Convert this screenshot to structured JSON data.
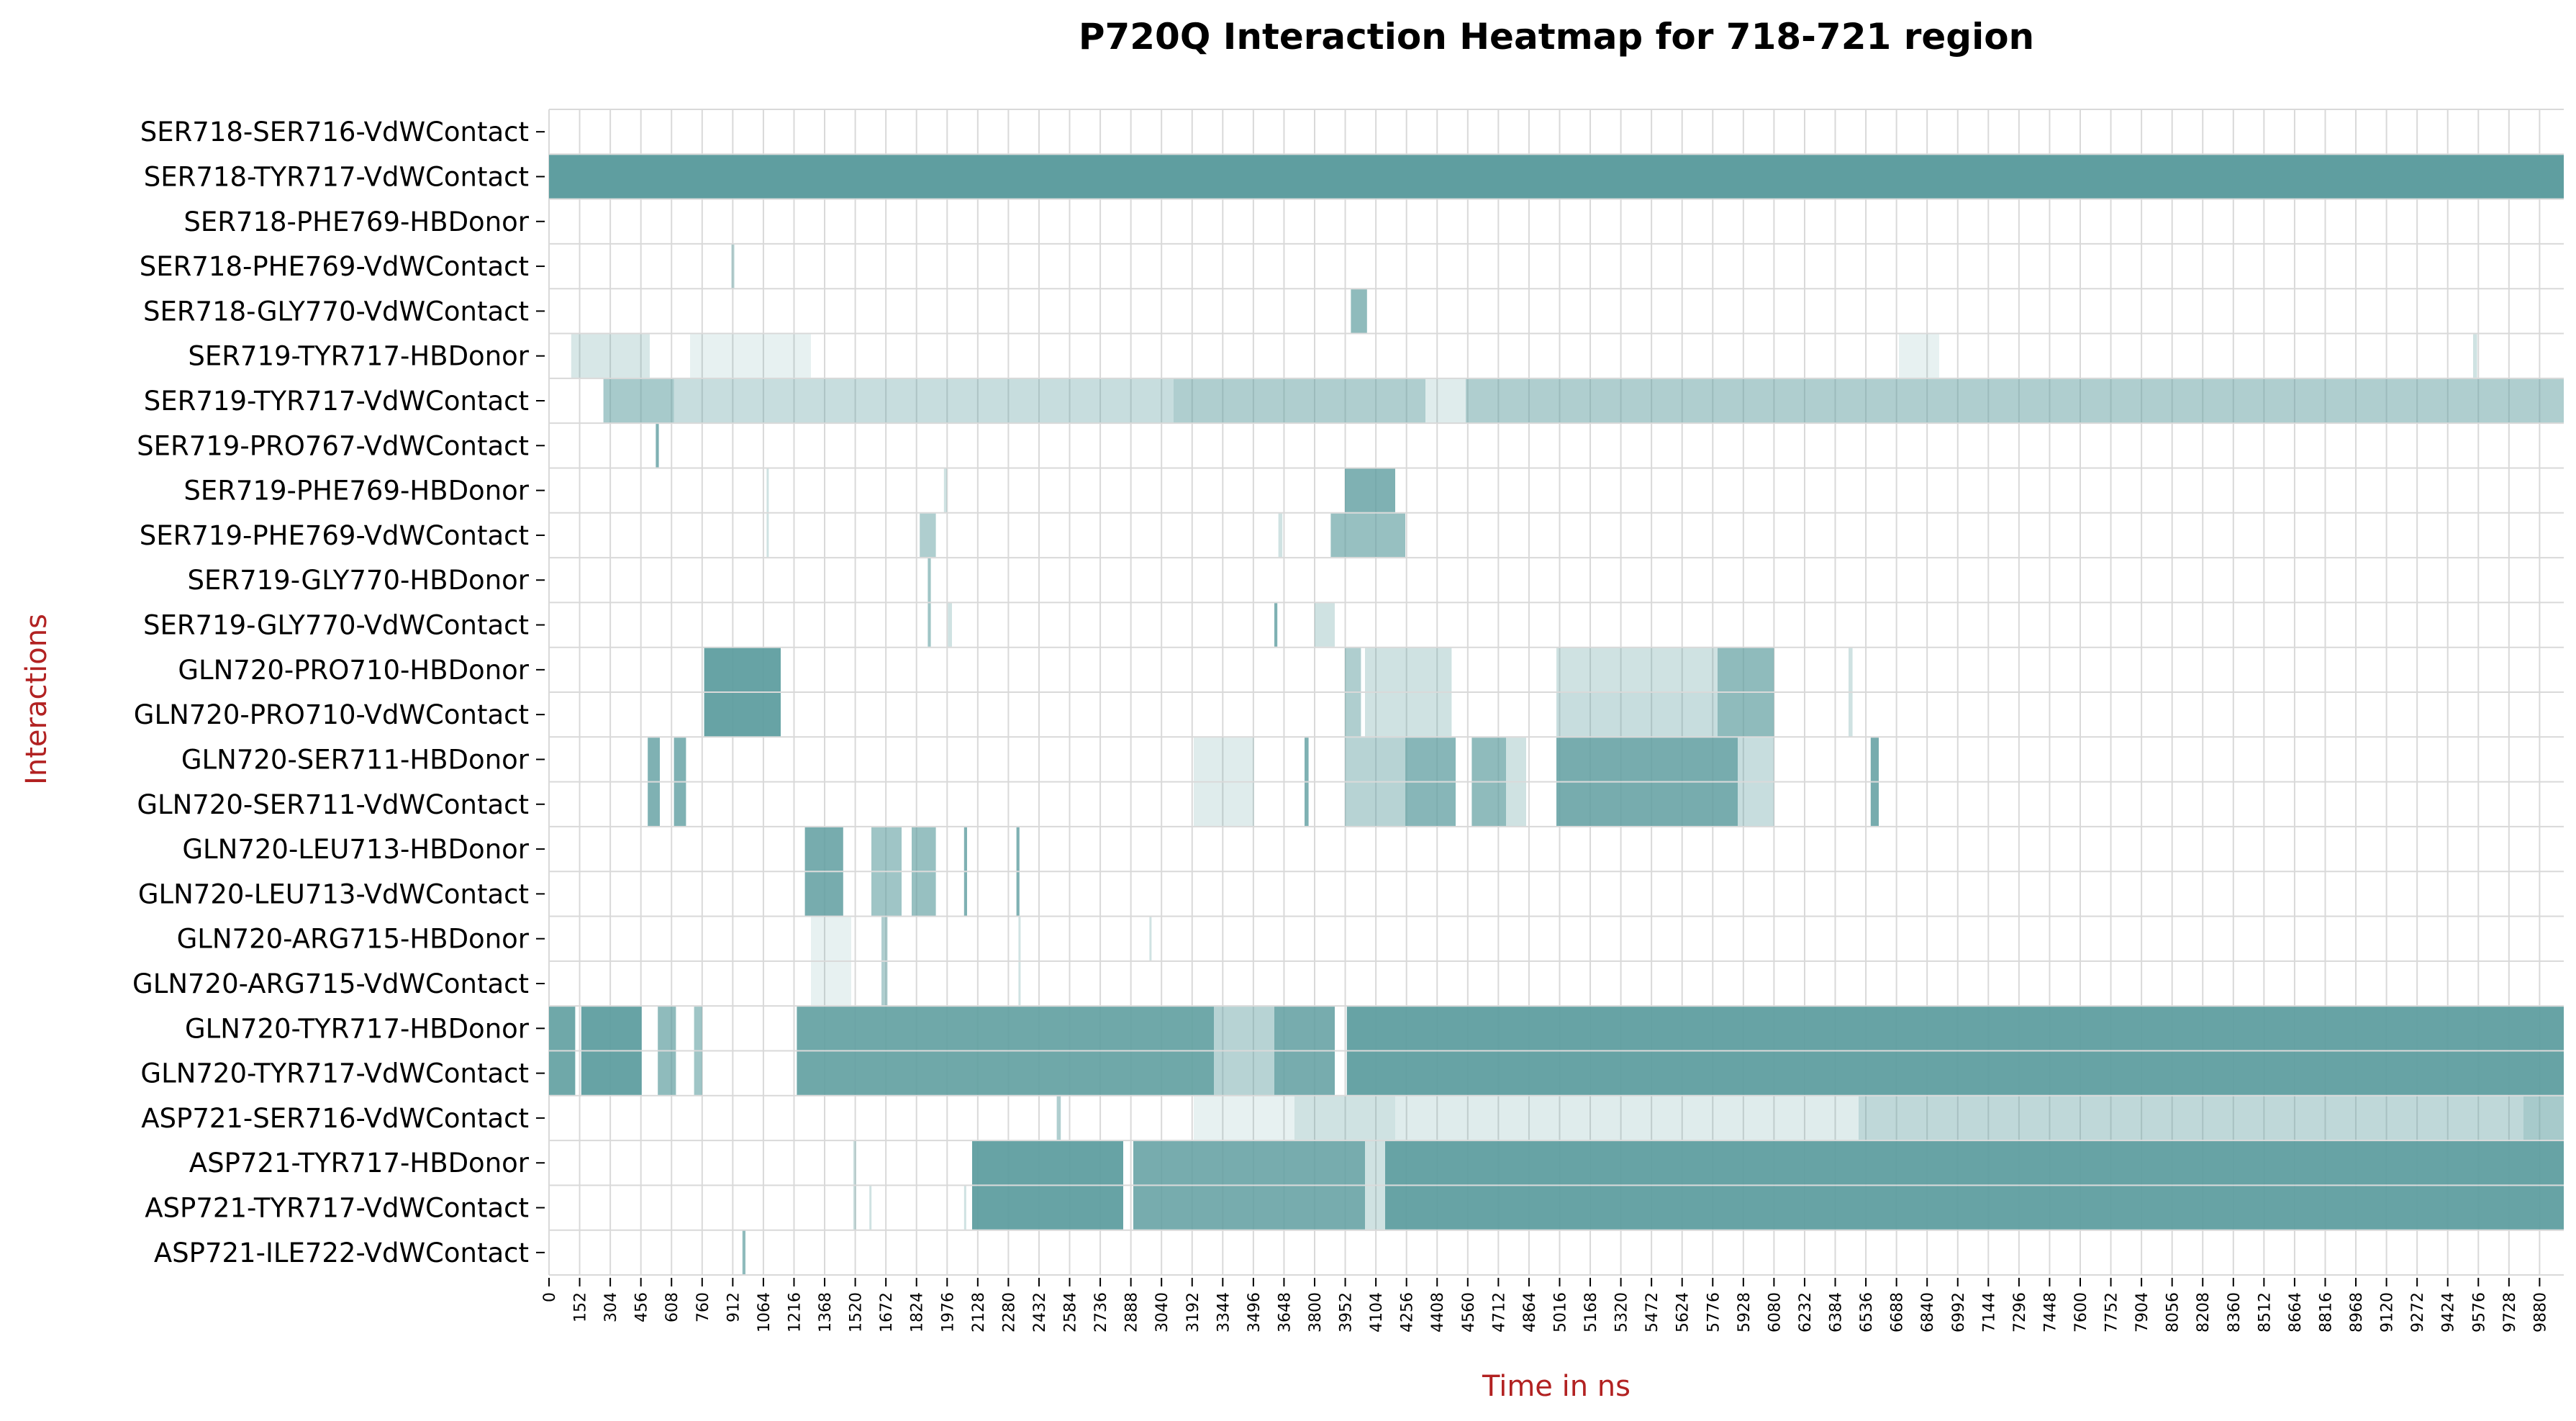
{
  "chart_data": {
    "type": "heatmap",
    "title": "P720Q Interaction Heatmap for 718-721 region",
    "xlabel": "Time in ns",
    "ylabel": "Interactions",
    "xlim": [
      0,
      10000
    ],
    "x_tick_step": 152,
    "x_ticks": [
      "0",
      "152",
      "304",
      "456",
      "608",
      "760",
      "912",
      "1064",
      "1216",
      "1368",
      "1520",
      "1672",
      "1824",
      "1976",
      "2128",
      "2280",
      "2432",
      "2584",
      "2736",
      "2888",
      "3040",
      "3192",
      "3344",
      "3496",
      "3648",
      "3800",
      "3952",
      "4104",
      "4256",
      "4408",
      "4560",
      "4712",
      "4864",
      "5016",
      "5168",
      "5320",
      "5472",
      "5624",
      "5776",
      "5928",
      "6080",
      "6232",
      "6384",
      "6536",
      "6688",
      "6840",
      "6992",
      "7144",
      "7296",
      "7448",
      "7600",
      "7752",
      "7904",
      "8056",
      "8208",
      "8360",
      "8512",
      "8664",
      "8816",
      "8968",
      "9120",
      "9272",
      "9424",
      "9576",
      "9728",
      "9880"
    ],
    "colors": {
      "present": "#5f9ea0",
      "absent": "#ffffff",
      "grid": "#d9d9d9"
    },
    "rows": [
      {
        "label": "SER718-SER716-VdWContact",
        "segments": []
      },
      {
        "label": "SER718-TYR717-VdWContact",
        "segments": [
          [
            0,
            10000,
            1.0
          ]
        ]
      },
      {
        "label": "SER718-PHE769-HBDonor",
        "segments": []
      },
      {
        "label": "SER718-PHE769-VdWContact",
        "segments": [
          [
            905,
            920,
            0.4
          ]
        ]
      },
      {
        "label": "SER718-GLY770-VdWContact",
        "segments": [
          [
            3980,
            4060,
            0.7
          ]
        ]
      },
      {
        "label": "SER719-TYR717-HBDonor",
        "segments": [
          [
            110,
            500,
            0.25
          ],
          [
            700,
            1300,
            0.15
          ],
          [
            6700,
            6900,
            0.15
          ],
          [
            9550,
            9570,
            0.3
          ]
        ]
      },
      {
        "label": "SER719-TYR717-VdWContact",
        "segments": [
          [
            270,
            620,
            0.55
          ],
          [
            620,
            3100,
            0.35
          ],
          [
            3100,
            4350,
            0.5
          ],
          [
            4350,
            4550,
            0.2
          ],
          [
            4550,
            10000,
            0.5
          ]
        ]
      },
      {
        "label": "SER719-PRO767-VdWContact",
        "segments": [
          [
            530,
            545,
            0.8
          ]
        ]
      },
      {
        "label": "SER719-PHE769-HBDonor",
        "segments": [
          [
            1080,
            1090,
            0.3
          ],
          [
            1960,
            1975,
            0.3
          ],
          [
            3950,
            4200,
            0.8
          ]
        ]
      },
      {
        "label": "SER719-PHE769-VdWContact",
        "segments": [
          [
            1080,
            1090,
            0.3
          ],
          [
            1840,
            1920,
            0.5
          ],
          [
            3620,
            3640,
            0.3
          ],
          [
            3880,
            4250,
            0.65
          ]
        ]
      },
      {
        "label": "SER719-GLY770-HBDonor",
        "segments": [
          [
            1880,
            1895,
            0.6
          ]
        ]
      },
      {
        "label": "SER719-GLY770-VdWContact",
        "segments": [
          [
            1880,
            1895,
            0.6
          ],
          [
            1980,
            2000,
            0.3
          ],
          [
            3600,
            3615,
            0.8
          ],
          [
            3800,
            3900,
            0.3
          ]
        ]
      },
      {
        "label": "GLN720-PRO710-HBDonor",
        "segments": [
          [
            770,
            1150,
            0.95
          ],
          [
            3950,
            4030,
            0.5
          ],
          [
            4050,
            4480,
            0.3
          ],
          [
            5000,
            5800,
            0.3
          ],
          [
            5800,
            6080,
            0.7
          ],
          [
            6450,
            6470,
            0.3
          ]
        ]
      },
      {
        "label": "GLN720-PRO710-VdWContact",
        "segments": [
          [
            770,
            1150,
            0.95
          ],
          [
            3950,
            4030,
            0.5
          ],
          [
            4050,
            4480,
            0.3
          ],
          [
            5000,
            5800,
            0.35
          ],
          [
            5800,
            6080,
            0.7
          ],
          [
            6450,
            6470,
            0.3
          ]
        ]
      },
      {
        "label": "GLN720-SER711-HBDonor",
        "segments": [
          [
            490,
            550,
            0.8
          ],
          [
            620,
            680,
            0.8
          ],
          [
            3200,
            3500,
            0.2
          ],
          [
            3750,
            3770,
            0.8
          ],
          [
            3950,
            4250,
            0.45
          ],
          [
            4250,
            4500,
            0.75
          ],
          [
            4580,
            4750,
            0.7
          ],
          [
            4750,
            4850,
            0.3
          ],
          [
            5000,
            5900,
            0.85
          ],
          [
            5900,
            6080,
            0.35
          ],
          [
            6560,
            6600,
            0.85
          ]
        ]
      },
      {
        "label": "GLN720-SER711-VdWContact",
        "segments": [
          [
            490,
            550,
            0.8
          ],
          [
            620,
            680,
            0.8
          ],
          [
            3200,
            3500,
            0.2
          ],
          [
            3750,
            3770,
            0.8
          ],
          [
            3950,
            4250,
            0.45
          ],
          [
            4250,
            4500,
            0.75
          ],
          [
            4580,
            4750,
            0.7
          ],
          [
            4750,
            4850,
            0.3
          ],
          [
            5000,
            5900,
            0.85
          ],
          [
            5900,
            6080,
            0.35
          ],
          [
            6560,
            6600,
            0.85
          ]
        ]
      },
      {
        "label": "GLN720-LEU713-HBDonor",
        "segments": [
          [
            1270,
            1460,
            0.85
          ],
          [
            1600,
            1750,
            0.6
          ],
          [
            1800,
            1920,
            0.65
          ],
          [
            2060,
            2075,
            0.8
          ],
          [
            2320,
            2335,
            0.8
          ]
        ]
      },
      {
        "label": "GLN720-LEU713-VdWContact",
        "segments": [
          [
            1270,
            1460,
            0.85
          ],
          [
            1600,
            1750,
            0.6
          ],
          [
            1800,
            1920,
            0.65
          ],
          [
            2060,
            2075,
            0.8
          ],
          [
            2320,
            2335,
            0.8
          ]
        ]
      },
      {
        "label": "GLN720-ARG715-HBDonor",
        "segments": [
          [
            1300,
            1500,
            0.15
          ],
          [
            1650,
            1680,
            0.5
          ],
          [
            2330,
            2340,
            0.3
          ],
          [
            2980,
            2990,
            0.3
          ]
        ]
      },
      {
        "label": "GLN720-ARG715-VdWContact",
        "segments": [
          [
            1300,
            1500,
            0.15
          ],
          [
            1650,
            1680,
            0.5
          ],
          [
            2330,
            2340,
            0.3
          ]
        ]
      },
      {
        "label": "GLN720-TYR717-HBDonor",
        "segments": [
          [
            0,
            130,
            0.9
          ],
          [
            160,
            460,
            0.95
          ],
          [
            540,
            630,
            0.7
          ],
          [
            720,
            760,
            0.6
          ],
          [
            1230,
            3300,
            0.9
          ],
          [
            3300,
            3600,
            0.45
          ],
          [
            3600,
            3900,
            0.85
          ],
          [
            3960,
            10000,
            0.95
          ]
        ]
      },
      {
        "label": "GLN720-TYR717-VdWContact",
        "segments": [
          [
            0,
            130,
            0.9
          ],
          [
            160,
            460,
            0.95
          ],
          [
            540,
            630,
            0.7
          ],
          [
            720,
            760,
            0.6
          ],
          [
            1230,
            3300,
            0.9
          ],
          [
            3300,
            3600,
            0.45
          ],
          [
            3600,
            3900,
            0.85
          ],
          [
            3960,
            10000,
            0.95
          ]
        ]
      },
      {
        "label": "ASP721-SER716-VdWContact",
        "segments": [
          [
            2520,
            2540,
            0.5
          ],
          [
            3200,
            3700,
            0.15
          ],
          [
            3700,
            4200,
            0.3
          ],
          [
            4200,
            6500,
            0.2
          ],
          [
            6500,
            9800,
            0.4
          ],
          [
            9800,
            10000,
            0.55
          ]
        ]
      },
      {
        "label": "ASP721-TYR717-HBDonor",
        "segments": [
          [
            1510,
            1525,
            0.3
          ],
          [
            2100,
            2850,
            0.95
          ],
          [
            2900,
            4050,
            0.85
          ],
          [
            4050,
            4150,
            0.3
          ],
          [
            4150,
            10000,
            0.95
          ]
        ]
      },
      {
        "label": "ASP721-TYR717-VdWContact",
        "segments": [
          [
            1510,
            1525,
            0.3
          ],
          [
            1590,
            1600,
            0.3
          ],
          [
            2060,
            2070,
            0.3
          ],
          [
            2100,
            2850,
            0.95
          ],
          [
            2900,
            4050,
            0.85
          ],
          [
            4050,
            4150,
            0.3
          ],
          [
            4150,
            10000,
            0.95
          ]
        ]
      },
      {
        "label": "ASP721-ILE722-VdWContact",
        "segments": [
          [
            960,
            975,
            0.7
          ]
        ]
      }
    ]
  }
}
